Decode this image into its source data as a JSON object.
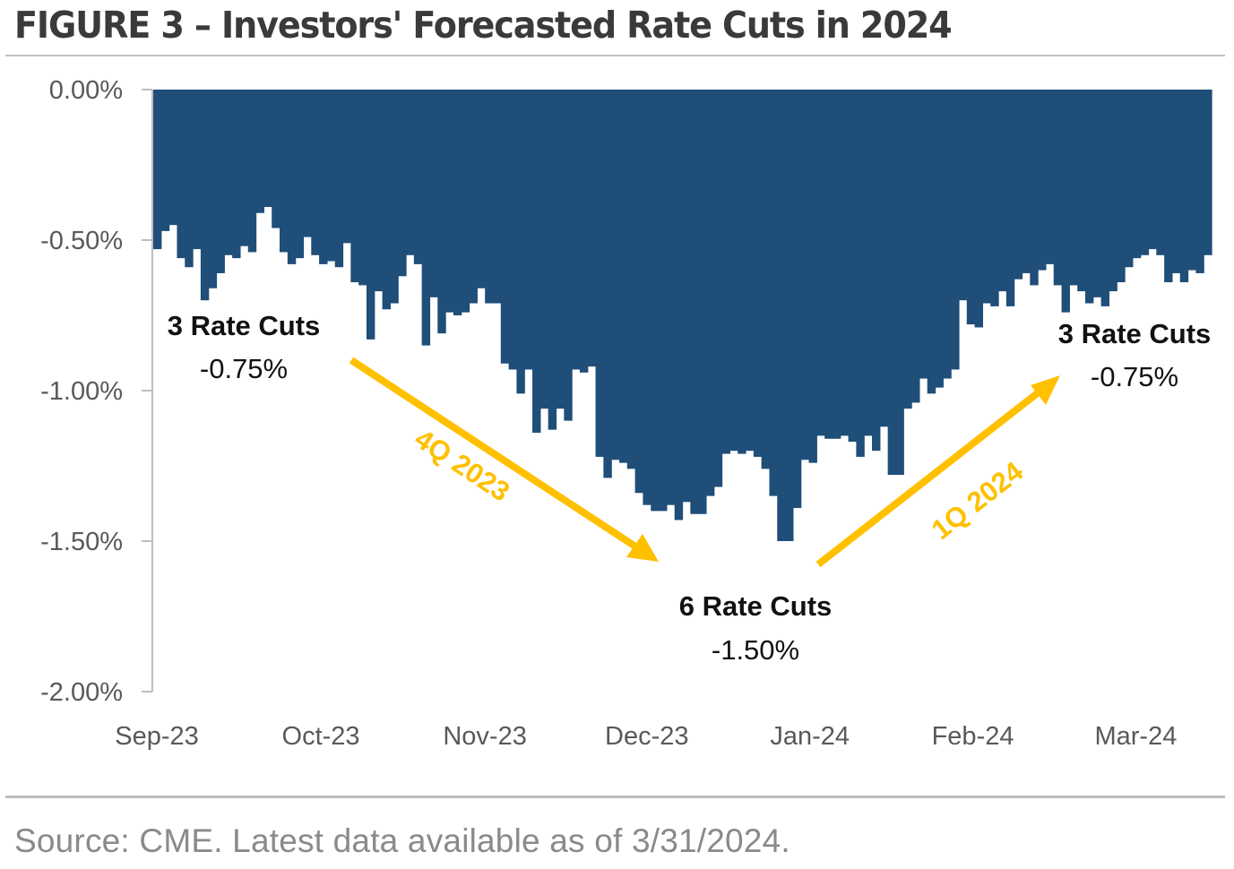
{
  "header": {
    "title": "FIGURE 3 – Investors' Forecasted Rate Cuts in 2024"
  },
  "footer": {
    "source": "Source: CME. Latest data available as of 3/31/2024."
  },
  "colors": {
    "bar": "#1f4e79",
    "arrow": "#ffc000",
    "axis": "#bfbfbf",
    "tick_text": "#595959",
    "annotation_text": "#111111"
  },
  "chart_data": {
    "type": "bar",
    "title": "FIGURE 3 – Investors' Forecasted Rate Cuts in 2024",
    "xlabel": "",
    "ylabel": "",
    "ylim": [
      -2.0,
      0.0
    ],
    "y_ticks": [
      "0.00%",
      "-0.50%",
      "-1.00%",
      "-1.50%",
      "-2.00%"
    ],
    "y_tick_values": [
      0.0,
      -0.5,
      -1.0,
      -1.5,
      -2.0
    ],
    "x_ticks": [
      "Sep-23",
      "Oct-23",
      "Nov-23",
      "Dec-23",
      "Jan-24",
      "Feb-24",
      "Mar-24"
    ],
    "x_tick_positions": [
      0.0,
      0.155,
      0.31,
      0.463,
      0.617,
      0.771,
      0.925
    ],
    "grid": false,
    "legend": "none",
    "unit": "%",
    "series": [
      {
        "name": "Forecasted rate cuts in 2024 (%)",
        "values": [
          -0.53,
          -0.47,
          -0.45,
          -0.56,
          -0.59,
          -0.53,
          -0.7,
          -0.66,
          -0.61,
          -0.55,
          -0.56,
          -0.52,
          -0.54,
          -0.41,
          -0.39,
          -0.46,
          -0.54,
          -0.58,
          -0.56,
          -0.49,
          -0.55,
          -0.58,
          -0.57,
          -0.59,
          -0.51,
          -0.64,
          -0.65,
          -0.83,
          -0.67,
          -0.73,
          -0.71,
          -0.62,
          -0.55,
          -0.58,
          -0.85,
          -0.69,
          -0.81,
          -0.74,
          -0.75,
          -0.74,
          -0.71,
          -0.66,
          -0.71,
          -0.71,
          -0.91,
          -0.93,
          -1.01,
          -0.93,
          -1.14,
          -1.06,
          -1.13,
          -1.06,
          -1.1,
          -0.93,
          -0.94,
          -0.92,
          -1.22,
          -1.29,
          -1.23,
          -1.24,
          -1.26,
          -1.34,
          -1.38,
          -1.4,
          -1.4,
          -1.38,
          -1.43,
          -1.37,
          -1.41,
          -1.41,
          -1.35,
          -1.32,
          -1.21,
          -1.2,
          -1.21,
          -1.2,
          -1.22,
          -1.26,
          -1.35,
          -1.5,
          -1.5,
          -1.39,
          -1.23,
          -1.24,
          -1.15,
          -1.16,
          -1.16,
          -1.15,
          -1.17,
          -1.22,
          -1.15,
          -1.2,
          -1.12,
          -1.28,
          -1.28,
          -1.06,
          -1.04,
          -0.96,
          -1.01,
          -0.99,
          -0.96,
          -0.93,
          -0.7,
          -0.78,
          -0.79,
          -0.71,
          -0.72,
          -0.67,
          -0.72,
          -0.63,
          -0.61,
          -0.65,
          -0.6,
          -0.58,
          -0.65,
          -0.74,
          -0.65,
          -0.67,
          -0.71,
          -0.69,
          -0.72,
          -0.67,
          -0.64,
          -0.59,
          -0.56,
          -0.55,
          -0.53,
          -0.55,
          -0.64,
          -0.61,
          -0.64,
          -0.6,
          -0.61,
          -0.55
        ]
      }
    ],
    "annotations": [
      {
        "label": "3 Rate Cuts",
        "value": "-0.75%",
        "position": "left"
      },
      {
        "label": "6 Rate Cuts",
        "value": "-1.50%",
        "position": "bottom-center"
      },
      {
        "label": "3 Rate Cuts",
        "value": "-0.75%",
        "position": "right"
      }
    ],
    "arrows": [
      {
        "label": "4Q 2023",
        "direction": "down-right"
      },
      {
        "label": "1Q 2024",
        "direction": "up-right"
      }
    ]
  }
}
